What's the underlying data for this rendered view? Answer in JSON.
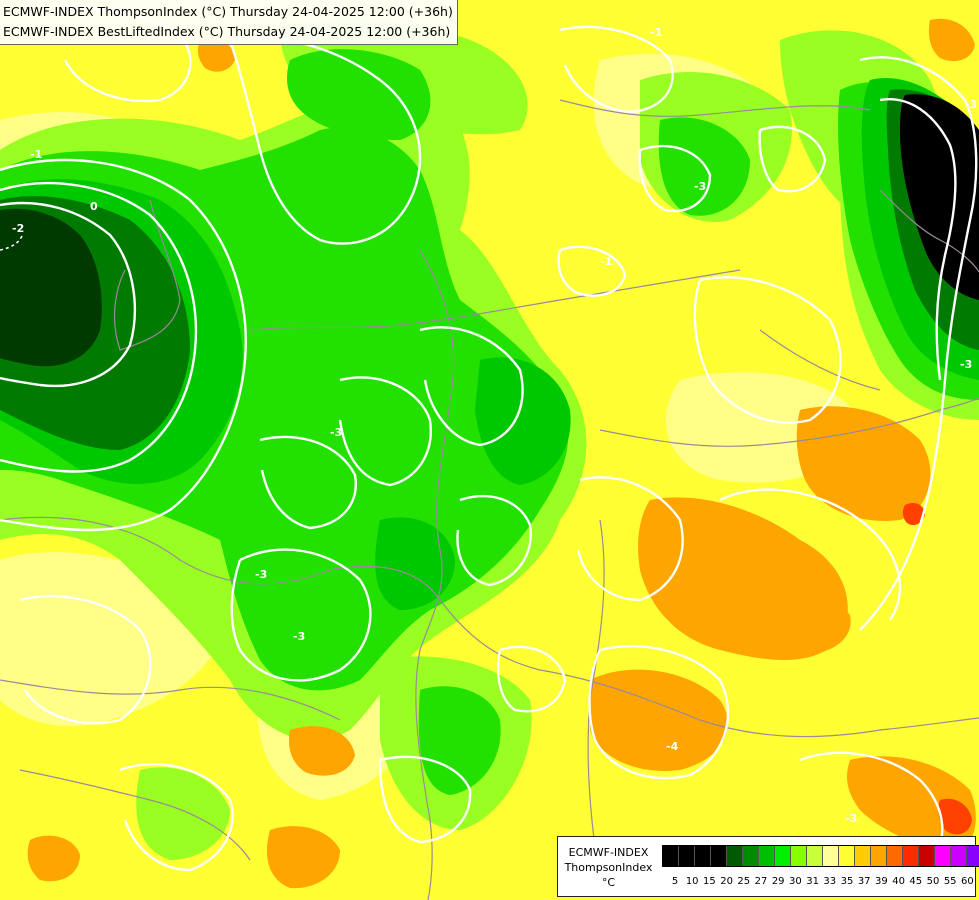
{
  "header": {
    "title_line_1": "ECMWF-INDEX ThompsonIndex (°C) Thursday 24-04-2025 12:00 (+36h)",
    "title_line_2": "ECMWF-INDEX BestLiftedIndex (°C) Thursday 24-04-2025 12:00 (+36h)"
  },
  "legend": {
    "line_1": "ECMWF-INDEX",
    "line_2": "ThompsonIndex",
    "line_3": "°C",
    "colors": [
      "#000000",
      "#000000",
      "#000000",
      "#000000",
      "#005a00",
      "#008c00",
      "#00bf00",
      "#00ee00",
      "#88ff00",
      "#c7ff3a",
      "#ffff99",
      "#ffff33",
      "#ffcc00",
      "#ffa500",
      "#ff6a00",
      "#ff2a00",
      "#c80000",
      "#ff00ff",
      "#cc00ff",
      "#8a00ff",
      "#5c00ff",
      "#0000ff"
    ],
    "tick_labels": [
      "5",
      "10",
      "15",
      "20",
      "25",
      "27",
      "29",
      "30",
      "31",
      "33",
      "35",
      "37",
      "39",
      "40",
      "45",
      "50",
      "55",
      "60"
    ]
  },
  "contour_labels": [
    "-2",
    "0",
    "-1",
    "-3",
    "-3",
    "-1",
    "-3",
    "-3",
    "-3",
    "-4",
    "-3",
    "-1",
    "-3"
  ],
  "colors": {
    "very_dark_green": "#003a00",
    "dark_green": "#007a00",
    "green": "#00c800",
    "bright_green": "#22e000",
    "lime": "#99ff22",
    "pale_lime": "#ccff55",
    "yellow": "#ffff33",
    "pale_yellow": "#ffff88",
    "orange": "#ffa500",
    "red_orange": "#ff4000",
    "black_zone": "#000000",
    "contour": "#ffffff",
    "border": "#9a8a9a"
  }
}
